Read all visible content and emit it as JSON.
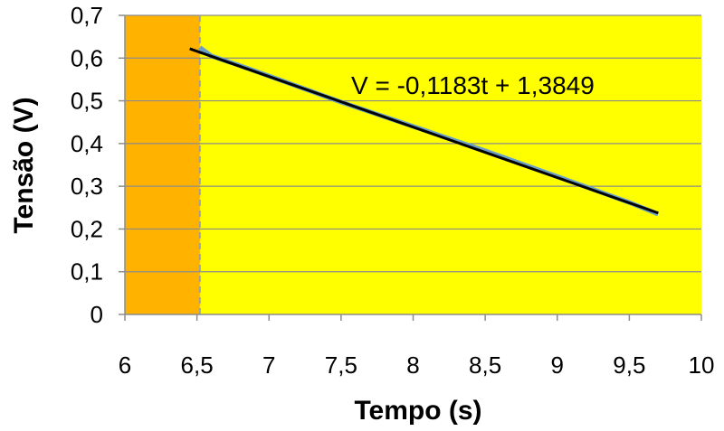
{
  "chart_data": {
    "type": "line",
    "xlabel": "Tempo (s)",
    "ylabel": "Tensão (V)",
    "xlim": [
      6,
      10
    ],
    "ylim": [
      0,
      0.7
    ],
    "x_ticks": [
      6,
      6.5,
      7,
      7.5,
      8,
      8.5,
      9,
      9.5,
      10
    ],
    "y_ticks": [
      0,
      0.1,
      0.2,
      0.3,
      0.4,
      0.5,
      0.6,
      0.7
    ],
    "x_tick_labels": [
      "6",
      "6,5",
      "7",
      "7,5",
      "8",
      "8,5",
      "9",
      "9,5",
      "10"
    ],
    "y_tick_labels": [
      "0",
      "0,1",
      "0,2",
      "0,3",
      "0,4",
      "0,5",
      "0,6",
      "0,7"
    ],
    "grid": "horizontal",
    "background_color": "#ffff00",
    "shaded_region": {
      "x_range": [
        6,
        6.52
      ],
      "color": "#ffb300"
    },
    "marker_line": {
      "x": 6.52,
      "style": "dashed",
      "color": "#a0a0a0"
    },
    "series": [
      {
        "x": [
          6.52,
          6.6,
          6.8,
          7.0,
          7.5,
          8.0,
          8.5,
          9.0,
          9.5,
          9.7
        ],
        "y": [
          0.625,
          0.605,
          0.582,
          0.558,
          0.497,
          0.44,
          0.383,
          0.323,
          0.262,
          0.235
        ],
        "color": "#6aa0c8"
      }
    ],
    "fit_line": {
      "x": [
        6.45,
        9.7
      ],
      "y": [
        0.6219,
        0.2374
      ],
      "color": "#000000"
    },
    "annotation": "V = -0,1183t + 1,3849"
  }
}
